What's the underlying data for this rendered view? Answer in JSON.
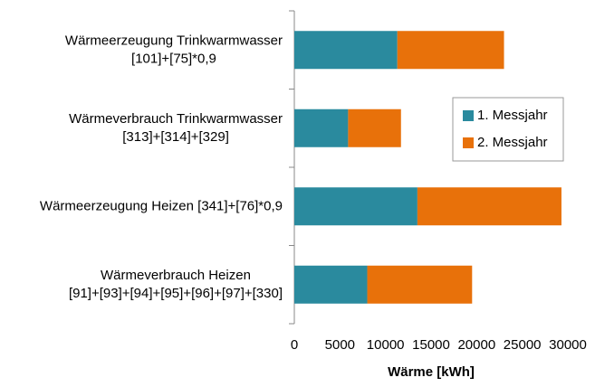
{
  "chart_data": {
    "type": "stacked_barh",
    "categories": [
      "Wärmeerzeugung Trinkwarmwasser\n[101]+[75]*0,9",
      "Wärmeverbrauch Trinkwarmwasser\n[313]+[314]+[329]",
      "Wärmeerzeugung Heizen [341]+[76]*0,9",
      "Wärmeverbrauch Heizen\n[91]+[93]+[94]+[95]+[96]+[97]+[330]"
    ],
    "series": [
      {
        "name": "1. Messjahr",
        "color": "#2a8a9e",
        "values": [
          11300,
          5900,
          13500,
          8000
        ]
      },
      {
        "name": "2. Messjahr",
        "color": "#e8710a",
        "values": [
          11700,
          5800,
          15800,
          11500
        ]
      }
    ],
    "xlabel": "Wärme [kWh]",
    "xlim": [
      0,
      30000
    ],
    "xticks": [
      0,
      5000,
      10000,
      15000,
      20000,
      25000,
      30000
    ],
    "legend": "right"
  }
}
